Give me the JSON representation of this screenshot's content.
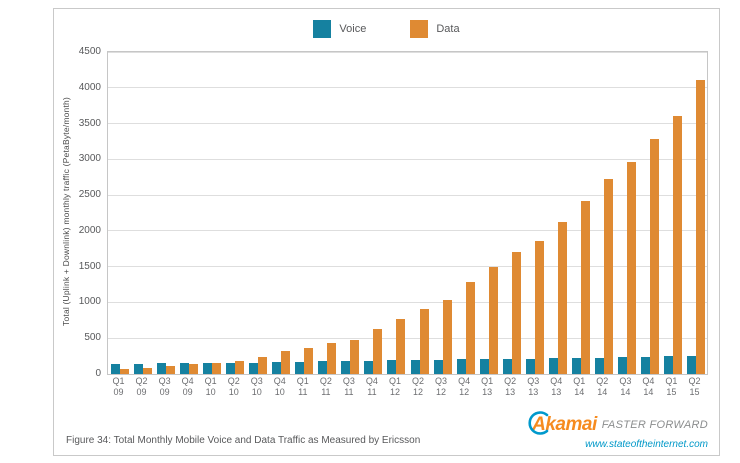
{
  "legend": {
    "items": [
      {
        "label": "Voice",
        "color": "#1581a0"
      },
      {
        "label": "Data",
        "color": "#df8a33"
      }
    ]
  },
  "chart_data": {
    "type": "bar",
    "categories": [
      "Q1 09",
      "Q2 09",
      "Q3 09",
      "Q4 09",
      "Q1 10",
      "Q2 10",
      "Q3 10",
      "Q4 10",
      "Q1 11",
      "Q2 11",
      "Q3 11",
      "Q4 11",
      "Q1 12",
      "Q2 12",
      "Q3 12",
      "Q4 12",
      "Q1 13",
      "Q2 13",
      "Q3 13",
      "Q4 13",
      "Q1 14",
      "Q2 14",
      "Q3 14",
      "Q4 14",
      "Q1 15",
      "Q2 15"
    ],
    "series": [
      {
        "name": "Voice",
        "color": "#1581a0",
        "values": [
          145,
          145,
          150,
          150,
          150,
          155,
          160,
          165,
          170,
          175,
          180,
          185,
          190,
          195,
          200,
          205,
          210,
          210,
          215,
          220,
          225,
          230,
          235,
          240,
          245,
          250
        ]
      },
      {
        "name": "Data",
        "color": "#df8a33",
        "values": [
          70,
          85,
          105,
          135,
          150,
          185,
          240,
          320,
          370,
          430,
          480,
          630,
          775,
          905,
          1030,
          1280,
          1500,
          1710,
          1860,
          2130,
          2420,
          2720,
          2960,
          3280,
          3600,
          4110
        ]
      }
    ],
    "title": "",
    "xlabel": "",
    "ylabel": "Total (Uplink + Downlink) monthly traffic (PetaByte/month)",
    "ylim": [
      0,
      4500
    ],
    "ytick_step": 500,
    "grid": true,
    "legend_position": "top"
  },
  "caption": "Figure 34: Total Monthly Mobile Voice and Data Traffic as Measured by Ericsson",
  "branding": {
    "name": "Akamai",
    "tagline": "FASTER FORWARD",
    "url": "www.stateoftheinternet.com",
    "swoosh_color": "#0099cc"
  }
}
